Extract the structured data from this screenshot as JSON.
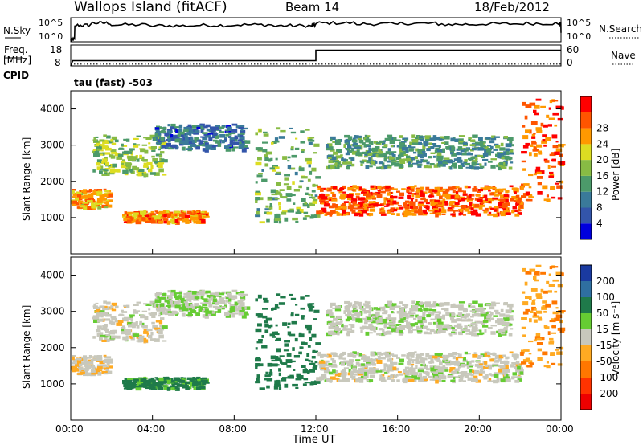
{
  "header": {
    "title": "Wallops Island (fitACF)",
    "beam": "Beam 14",
    "date": "18/Feb/2012"
  },
  "noise_panel": {
    "left_label": "N.Sky",
    "right_label": "N.Search",
    "y_ticks": [
      "10^5",
      "10^0"
    ]
  },
  "freq_panel": {
    "left_label_1": "Freq.",
    "left_label_2": "[MHz]",
    "right_label": "Nave",
    "left_ticks": [
      "18",
      "8"
    ],
    "right_ticks": [
      "60",
      "0"
    ],
    "cpid_label": "CPID",
    "cpid_value": "tau (fast) -503"
  },
  "time_axis": {
    "label": "Time UT",
    "ticks": [
      "00:00",
      "04:00",
      "08:00",
      "12:00",
      "16:00",
      "20:00",
      "00:00"
    ],
    "range_hours": [
      0,
      24
    ]
  },
  "power_panel": {
    "ylabel": "Slant Range [km]",
    "y_ticks": [
      "1000",
      "2000",
      "3000",
      "4000"
    ],
    "colorbar_label": "Power [dB]",
    "colorbar_ticks": [
      "4",
      "8",
      "12",
      "16",
      "20",
      "24",
      "28"
    ],
    "colors": [
      "#0000dd",
      "#3355aa",
      "#3a7a9a",
      "#4c9a6a",
      "#88bb44",
      "#dddd22",
      "#ff9900",
      "#ff5500",
      "#ff0000"
    ]
  },
  "velocity_panel": {
    "ylabel": "Slant Range [km]",
    "y_ticks": [
      "1000",
      "2000",
      "3000",
      "4000"
    ],
    "colorbar_label": "Velocity [m s⁻¹]",
    "colorbar_ticks": [
      "200",
      "100",
      "50",
      "15",
      "-15",
      "-50",
      "-100",
      "-200"
    ],
    "colors": [
      "#1a3aa0",
      "#2f6fa0",
      "#1f7a4a",
      "#66cc33",
      "#c8c8bc",
      "#ffaa22",
      "#ff7700",
      "#ff3300",
      "#ee0000"
    ]
  },
  "chart_data": {
    "type": "heatmap",
    "x_unit": "hours UT",
    "y_unit": "km",
    "ylim": [
      0,
      4500
    ],
    "xlim": [
      0,
      24
    ],
    "echo_bands": [
      {
        "t0": 0.0,
        "t1": 1.8,
        "r0": 1300,
        "r1": 1800,
        "power_db": 22,
        "velocity": -10
      },
      {
        "t0": 1.0,
        "t1": 4.5,
        "r0": 2200,
        "r1": 3300,
        "power_db": 16,
        "velocity": 0
      },
      {
        "t0": 4.0,
        "t1": 8.5,
        "r0": 2900,
        "r1": 3600,
        "power_db": 8,
        "velocity": 10
      },
      {
        "t0": 2.5,
        "t1": 6.5,
        "r0": 900,
        "r1": 1200,
        "power_db": 24,
        "velocity": 60
      },
      {
        "t0": 9.0,
        "t1": 12.0,
        "r0": 900,
        "r1": 3500,
        "power_db": 14,
        "velocity": 80
      },
      {
        "t0": 12.0,
        "t1": 22.0,
        "r0": 1100,
        "r1": 1900,
        "power_db": 26,
        "velocity": 0
      },
      {
        "t0": 12.5,
        "t1": 21.5,
        "r0": 2400,
        "r1": 3300,
        "power_db": 12,
        "velocity": 5
      },
      {
        "t0": 22.0,
        "t1": 24.0,
        "r0": 1500,
        "r1": 4300,
        "power_db": 26,
        "velocity": -40
      }
    ],
    "noise_log": {
      "t": [
        0,
        0.2,
        1,
        2,
        4,
        6,
        8,
        10,
        11.8,
        12,
        14,
        16,
        18,
        20,
        22,
        23.9,
        24
      ],
      "values": [
        0.3,
        3.5,
        4,
        3.6,
        3.4,
        3.5,
        3.6,
        3.4,
        3.5,
        4,
        3.8,
        3.9,
        3.7,
        3.8,
        3.9,
        3.8,
        2
      ]
    },
    "frequency_mhz": {
      "t": [
        0,
        0.1,
        12,
        24
      ],
      "values": [
        8,
        10.5,
        15.5,
        15.5
      ]
    },
    "nave": {
      "t": [
        0,
        24
      ],
      "values": [
        5,
        5
      ]
    }
  }
}
